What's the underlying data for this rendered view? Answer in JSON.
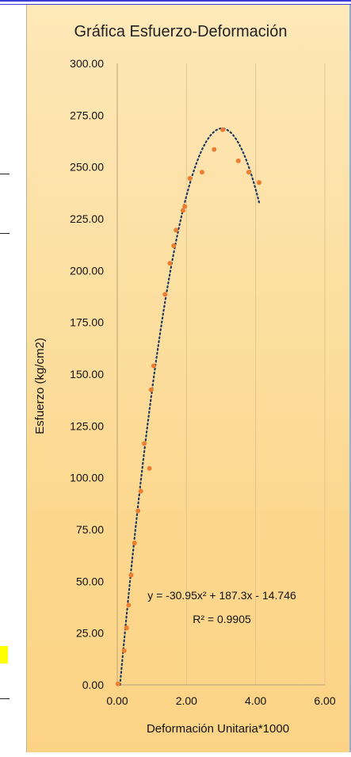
{
  "chart_data": {
    "type": "scatter",
    "title": "Gráfica Esfuerzo-Deformación",
    "xlabel": "Deformación Unitaria*1000",
    "ylabel": "Esfuerzo (kg/cm2)",
    "xlim": [
      0,
      6
    ],
    "ylim": [
      0,
      300
    ],
    "x_ticks": [
      "0.00",
      "2.00",
      "4.00",
      "6.00"
    ],
    "y_ticks": [
      "0.00",
      "25.00",
      "50.00",
      "75.00",
      "100.00",
      "125.00",
      "150.00",
      "175.00",
      "200.00",
      "225.00",
      "250.00",
      "275.00",
      "300.00"
    ],
    "grid": "vertical",
    "marker_color": "#ed7d31",
    "trendline_color": "#1f3864",
    "points": [
      [
        0.02,
        0.5
      ],
      [
        0.2,
        16.5
      ],
      [
        0.27,
        27.5
      ],
      [
        0.33,
        38.5
      ],
      [
        0.4,
        53
      ],
      [
        0.5,
        68.5
      ],
      [
        0.6,
        84
      ],
      [
        0.68,
        93.5
      ],
      [
        0.78,
        116.5
      ],
      [
        0.93,
        104.5
      ],
      [
        0.98,
        142.5
      ],
      [
        1.05,
        154
      ],
      [
        1.38,
        188.5
      ],
      [
        1.52,
        203.5
      ],
      [
        1.63,
        212
      ],
      [
        1.7,
        219.5
      ],
      [
        1.9,
        229
      ],
      [
        1.95,
        231
      ],
      [
        2.1,
        244.5
      ],
      [
        2.45,
        247.5
      ],
      [
        2.8,
        258.5
      ],
      [
        3.05,
        268
      ],
      [
        3.5,
        253
      ],
      [
        3.8,
        247.5
      ],
      [
        4.1,
        242.5
      ]
    ],
    "trendline": {
      "type": "polynomial",
      "a": -30.95,
      "b": 187.3,
      "c": -14.746,
      "x_range": [
        0.08,
        4.1
      ],
      "equation": "y = -30.95x² + 187.3x - 14.746",
      "r2": "R² = 0.9905"
    }
  }
}
